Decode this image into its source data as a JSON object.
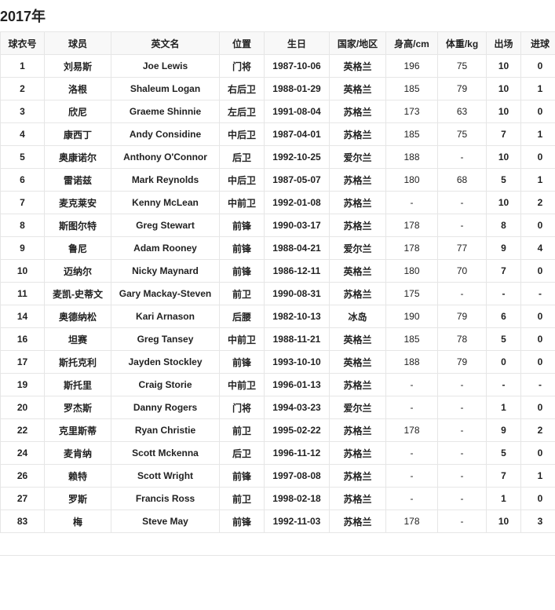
{
  "title": "2017年",
  "headers": [
    "球衣号",
    "球员",
    "英文名",
    "位置",
    "生日",
    "国家/地区",
    "身高/cm",
    "体重/kg",
    "出场",
    "进球"
  ],
  "rows": [
    [
      "1",
      "刘易斯",
      "Joe Lewis",
      "门将",
      "1987-10-06",
      "英格兰",
      "196",
      "75",
      "10",
      "0"
    ],
    [
      "2",
      "洛根",
      "Shaleum Logan",
      "右后卫",
      "1988-01-29",
      "英格兰",
      "185",
      "79",
      "10",
      "1"
    ],
    [
      "3",
      "欣尼",
      "Graeme Shinnie",
      "左后卫",
      "1991-08-04",
      "苏格兰",
      "173",
      "63",
      "10",
      "0"
    ],
    [
      "4",
      "康西丁",
      "Andy Considine",
      "中后卫",
      "1987-04-01",
      "苏格兰",
      "185",
      "75",
      "7",
      "1"
    ],
    [
      "5",
      "奥康诺尔",
      "Anthony O'Connor",
      "后卫",
      "1992-10-25",
      "爱尔兰",
      "188",
      "-",
      "10",
      "0"
    ],
    [
      "6",
      "雷诺兹",
      "Mark Reynolds",
      "中后卫",
      "1987-05-07",
      "苏格兰",
      "180",
      "68",
      "5",
      "1"
    ],
    [
      "7",
      "麦克莱安",
      "Kenny McLean",
      "中前卫",
      "1992-01-08",
      "苏格兰",
      "-",
      "-",
      "10",
      "2"
    ],
    [
      "8",
      "斯图尔特",
      "Greg Stewart",
      "前锋",
      "1990-03-17",
      "苏格兰",
      "178",
      "-",
      "8",
      "0"
    ],
    [
      "9",
      "鲁尼",
      "Adam Rooney",
      "前锋",
      "1988-04-21",
      "爱尔兰",
      "178",
      "77",
      "9",
      "4"
    ],
    [
      "10",
      "迈纳尔",
      "Nicky Maynard",
      "前锋",
      "1986-12-11",
      "英格兰",
      "180",
      "70",
      "7",
      "0"
    ],
    [
      "11",
      "麦凯-史蒂文",
      "Gary Mackay-Steven",
      "前卫",
      "1990-08-31",
      "苏格兰",
      "175",
      "-",
      "-",
      "-"
    ],
    [
      "14",
      "奥德纳松",
      "Kari Arnason",
      "后腰",
      "1982-10-13",
      "冰岛",
      "190",
      "79",
      "6",
      "0"
    ],
    [
      "16",
      "坦赛",
      "Greg Tansey",
      "中前卫",
      "1988-11-21",
      "英格兰",
      "185",
      "78",
      "5",
      "0"
    ],
    [
      "17",
      "斯托克利",
      "Jayden Stockley",
      "前锋",
      "1993-10-10",
      "英格兰",
      "188",
      "79",
      "0",
      "0"
    ],
    [
      "19",
      "斯托里",
      "Craig Storie",
      "中前卫",
      "1996-01-13",
      "苏格兰",
      "-",
      "-",
      "-",
      "-"
    ],
    [
      "20",
      "罗杰斯",
      "Danny Rogers",
      "门将",
      "1994-03-23",
      "爱尔兰",
      "-",
      "-",
      "1",
      "0"
    ],
    [
      "22",
      "克里斯蒂",
      "Ryan Christie",
      "前卫",
      "1995-02-22",
      "苏格兰",
      "178",
      "-",
      "9",
      "2"
    ],
    [
      "24",
      "麦肯纳",
      "Scott Mckenna",
      "后卫",
      "1996-11-12",
      "苏格兰",
      "-",
      "-",
      "5",
      "0"
    ],
    [
      "26",
      "赖特",
      "Scott Wright",
      "前锋",
      "1997-08-08",
      "苏格兰",
      "-",
      "-",
      "7",
      "1"
    ],
    [
      "27",
      "罗斯",
      "Francis Ross",
      "前卫",
      "1998-02-18",
      "苏格兰",
      "-",
      "-",
      "1",
      "0"
    ],
    [
      "83",
      "梅",
      "Steve May",
      "前锋",
      "1992-11-03",
      "苏格兰",
      "178",
      "-",
      "10",
      "3"
    ]
  ]
}
